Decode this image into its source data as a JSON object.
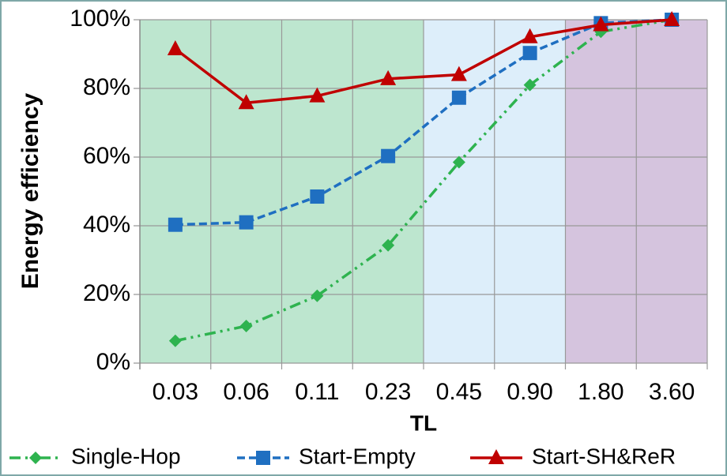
{
  "chart_data": {
    "type": "line",
    "x_label": "TL",
    "y_label": "Energy efficiency",
    "categories": [
      "0.03",
      "0.06",
      "0.11",
      "0.23",
      "0.45",
      "0.90",
      "1.80",
      "3.60"
    ],
    "series": [
      {
        "name": "Single-Hop",
        "color": "#2eb34f",
        "dash": "dash-dot-dot",
        "marker": "diamond",
        "values": [
          6.5,
          10.8,
          19.6,
          34.3,
          58.5,
          81,
          96.5,
          100
        ]
      },
      {
        "name": "Start-Empty",
        "color": "#1f6fc1",
        "dash": "dash",
        "marker": "square",
        "values": [
          40.3,
          41,
          48.5,
          60.3,
          77.3,
          90.3,
          99,
          100
        ]
      },
      {
        "name": "Start-SH&ReR",
        "color": "#c00000",
        "dash": "solid",
        "marker": "triangle",
        "values": [
          91.5,
          75.8,
          77.8,
          82.8,
          84,
          95,
          98.5,
          100
        ]
      }
    ],
    "ylim": [
      0,
      100
    ],
    "yticks": [
      {
        "value": 0,
        "label": "0%"
      },
      {
        "value": 20,
        "label": "20%"
      },
      {
        "value": 40,
        "label": "40%"
      },
      {
        "value": 60,
        "label": "60%"
      },
      {
        "value": 80,
        "label": "80%"
      },
      {
        "value": 100,
        "label": "100%"
      }
    ],
    "grid": true,
    "legend": "bottom"
  }
}
